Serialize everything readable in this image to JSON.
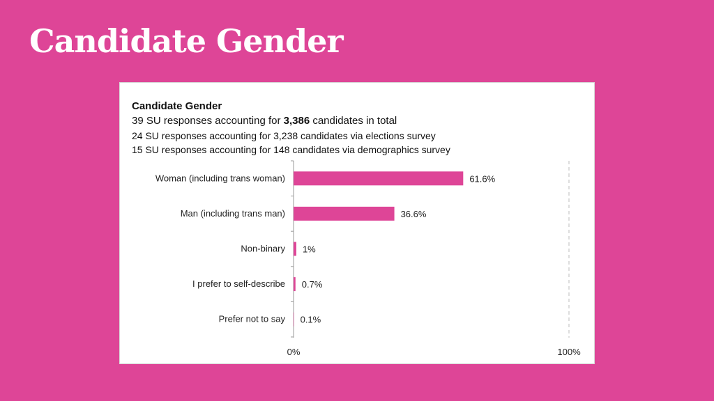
{
  "slide": {
    "title": "Candidate Gender"
  },
  "header": {
    "line1_pre": "39 SU responses accounting for ",
    "line1_bold": "3,386",
    "line1_post": " candidates in total",
    "line2": "24 SU responses accounting for 3,238 candidates via elections survey",
    "line3": "15 SU responses accounting for 148 candidates via demographics survey"
  },
  "colors": {
    "background": "#de4597",
    "bar": "#de4597"
  },
  "chart_data": {
    "type": "bar",
    "orientation": "horizontal",
    "title": "Candidate Gender",
    "categories": [
      "Woman (including trans woman)",
      "Man (including trans man)",
      "Non-binary",
      "I prefer to self-describe",
      "Prefer not to say"
    ],
    "values": [
      61.6,
      36.6,
      1,
      0.7,
      0.1
    ],
    "data_labels": [
      "61.6%",
      "36.6%",
      "1%",
      "0.7%",
      "0.1%"
    ],
    "xlim": [
      0,
      100
    ],
    "x_tick_labels": [
      "0%",
      "100%"
    ],
    "reference_line": {
      "x": 100,
      "style": "dashed"
    },
    "grid": false,
    "legend": "none"
  }
}
